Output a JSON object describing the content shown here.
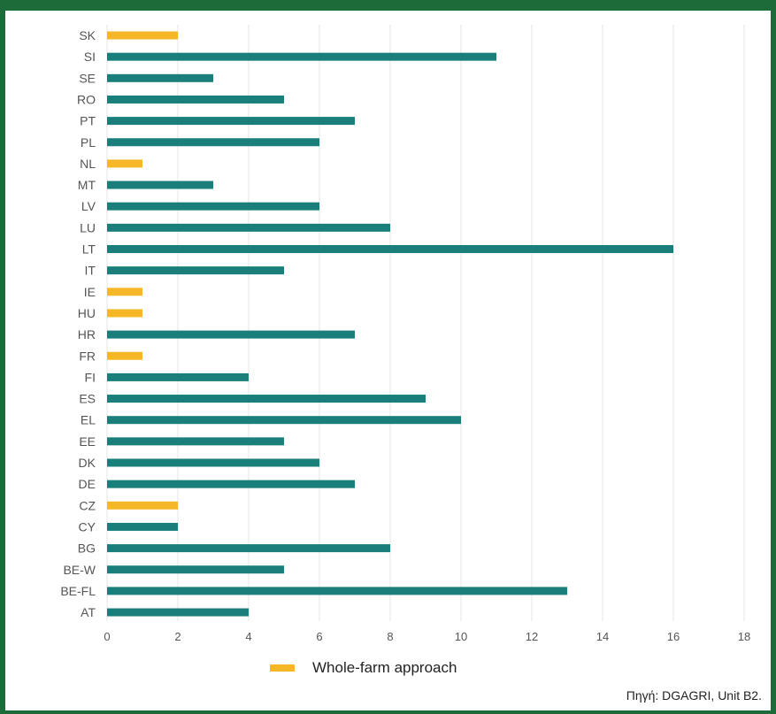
{
  "chart_data": {
    "type": "bar",
    "orientation": "horizontal",
    "categories": [
      "SK",
      "SI",
      "SE",
      "RO",
      "PT",
      "PL",
      "NL",
      "MT",
      "LV",
      "LU",
      "LT",
      "IT",
      "IE",
      "HU",
      "HR",
      "FR",
      "FI",
      "ES",
      "EL",
      "EE",
      "DK",
      "DE",
      "CZ",
      "CY",
      "BG",
      "BE-W",
      "BE-FL",
      "AT"
    ],
    "values": [
      2,
      11,
      3,
      5,
      7,
      6,
      1,
      3,
      6,
      8,
      16,
      5,
      1,
      1,
      7,
      1,
      4,
      9,
      10,
      5,
      6,
      7,
      2,
      2,
      8,
      5,
      13,
      4
    ],
    "whole_farm_approach": [
      true,
      false,
      false,
      false,
      false,
      false,
      true,
      false,
      false,
      false,
      false,
      false,
      true,
      true,
      false,
      true,
      false,
      false,
      false,
      false,
      false,
      false,
      true,
      false,
      false,
      false,
      false,
      false
    ],
    "xlim": [
      0,
      18
    ],
    "xticks": [
      0,
      2,
      4,
      6,
      8,
      10,
      12,
      14,
      16,
      18
    ],
    "grid": "vertical",
    "colors": {
      "default": "#1a7f7a",
      "whole_farm": "#f5b727"
    },
    "legend": {
      "label": "Whole-farm approach",
      "placement": "bottom"
    }
  },
  "source": "Πηγή: DGAGRI, Unit B2."
}
